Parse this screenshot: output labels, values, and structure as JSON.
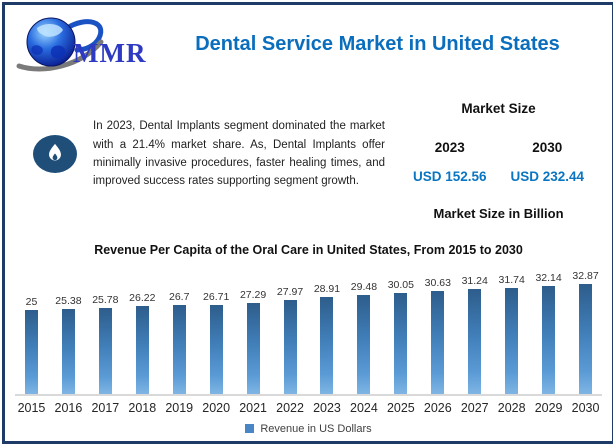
{
  "header": {
    "logo_text": "MMR",
    "title": "Dental Service Market in United States"
  },
  "insight": {
    "text": "In 2023, Dental Implants segment dominated the market with a 21.4% market share. As, Dental Implants offer minimally invasive procedures, faster healing times, and improved success rates supporting segment growth."
  },
  "market_size": {
    "heading": "Market Size",
    "columns": [
      {
        "year": "2023",
        "value": "USD 152.56"
      },
      {
        "year": "2030",
        "value": "USD 232.44"
      }
    ],
    "footnote": "Market Size in Billion"
  },
  "chart_data": {
    "type": "bar",
    "title": "Revenue Per Capita of the Oral Care in United States, From 2015 to 2030",
    "categories": [
      "2015",
      "2016",
      "2017",
      "2018",
      "2019",
      "2020",
      "2021",
      "2022",
      "2023",
      "2024",
      "2025",
      "2026",
      "2027",
      "2028",
      "2029",
      "2030"
    ],
    "values": [
      25,
      25.38,
      25.78,
      26.22,
      26.7,
      26.71,
      27.29,
      27.97,
      28.91,
      29.48,
      30.05,
      30.63,
      31.24,
      31.74,
      32.14,
      32.87
    ],
    "xlabel": "",
    "ylabel": "",
    "ylim": [
      0,
      33
    ],
    "grid": false,
    "legend_position": "bottom",
    "legend": "Revenue in US Dollars"
  },
  "colors": {
    "border_navy": "#1e3a66",
    "title_blue": "#0a6ebd",
    "value_blue": "#0a75c2",
    "icon_navy": "#1f4e79",
    "bar_top": "#2d5d8b",
    "bar_bottom": "#7fb5e4",
    "legend_swatch": "#4a86c5",
    "axis_line": "#d9d9d9"
  }
}
